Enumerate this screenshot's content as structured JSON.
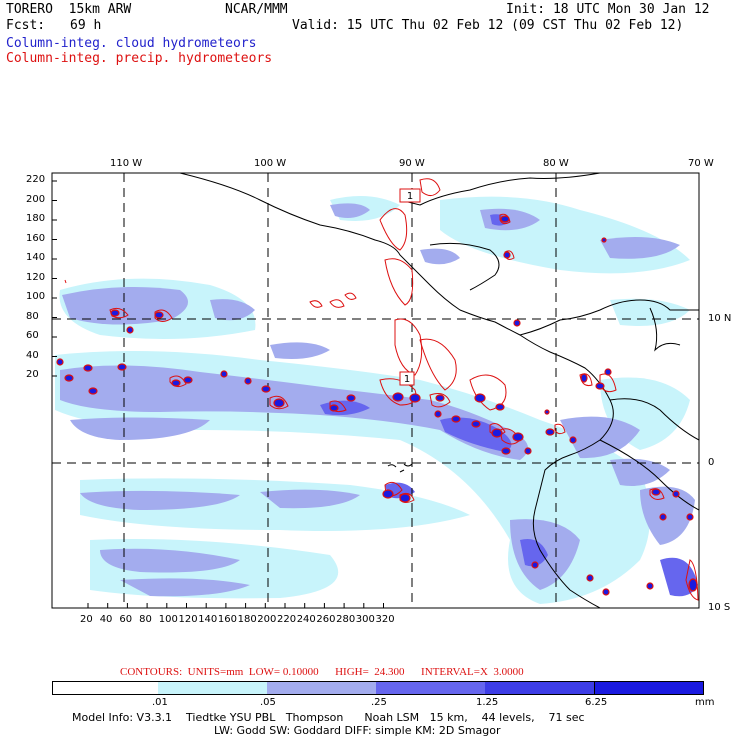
{
  "header": {
    "model": "TORERO  15km ARW",
    "center": "NCAR/MMM",
    "init": "Init: 18 UTC Mon 30 Jan 12",
    "fcst_label": "Fcst:",
    "fcst_value": "69 h",
    "valid": "Valid: 15 UTC Thu 02 Feb 12 (09 CST Thu 02 Feb 12)",
    "field_cloud": "Column-integ. cloud hydrometeors",
    "field_precip": "Column-integ. precip. hydrometeors"
  },
  "colors": {
    "cloud_label": "#2222cc",
    "precip_label": "#dd1111",
    "shade_1": "#ffffff",
    "shade_2": "#c8f4fb",
    "shade_3": "#a3acee",
    "shade_4": "#6666ee",
    "shade_5": "#3d3de6",
    "shade_6": "#1a1ae0",
    "contour": "#dd1111"
  },
  "map": {
    "lon_labels": [
      "110 W",
      "100 W",
      "90 W",
      "80 W",
      "70 W"
    ],
    "lat_labels": [
      "10 N",
      "0",
      "10 S"
    ],
    "y_ticks": [
      "220",
      "200",
      "180",
      "160",
      "140",
      "120",
      "100",
      "80",
      "60",
      "40",
      "20"
    ],
    "x_ticks": [
      "20",
      "40",
      "60",
      "80",
      "100",
      "120",
      "140",
      "160",
      "180",
      "200",
      "220",
      "240",
      "260",
      "280",
      "300",
      "320"
    ],
    "station_markers": [
      "1",
      "1"
    ]
  },
  "contour_info": "CONTOURS:  UNITS=mm  LOW= 0.10000      HIGH=  24.300      INTERVAL=X  3.0000",
  "legend": {
    "unit": "mm",
    "levels": [
      ".01",
      ".05",
      ".25",
      "1.25",
      "6.25"
    ]
  },
  "footer": {
    "line1": "Model Info: V3.3.1    Tiedtke YSU PBL   Thompson      Noah LSM   15 km,    44 levels,    71 sec",
    "line2": "LW: Godd SW: Goddard DIFF: simple KM: 2D Smagor"
  }
}
